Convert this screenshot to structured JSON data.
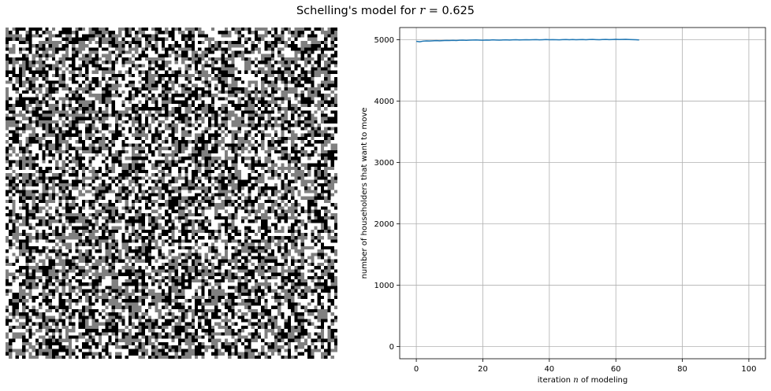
{
  "figure": {
    "title_prefix": "Schelling's model for ",
    "title_var": "r",
    "title_suffix": " = 0.625"
  },
  "grid_panel": {
    "rows": 100,
    "cols": 100,
    "colors": {
      "empty": "#ffffff",
      "group_a": "#808080",
      "group_b": "#000000"
    }
  },
  "chart_data": {
    "type": "line",
    "xlabel_prefix": "iteration ",
    "xlabel_var": "n",
    "xlabel_suffix": " of modeling",
    "ylabel": "number of householders that want to move",
    "xlim": [
      -5,
      105
    ],
    "ylim": [
      -200,
      5200
    ],
    "xticks": [
      0,
      20,
      40,
      60,
      80,
      100
    ],
    "yticks": [
      0,
      1000,
      2000,
      3000,
      4000,
      5000
    ],
    "grid": true,
    "line_color": "#1f77b4",
    "series": [
      {
        "x": [
          0,
          1,
          2,
          3,
          4,
          5,
          6,
          7,
          8,
          9,
          10,
          11,
          12,
          13,
          14,
          15,
          16,
          17,
          18,
          19,
          20,
          21,
          22,
          23,
          24,
          25,
          26,
          27,
          28,
          29,
          30,
          31,
          32,
          33,
          34,
          35,
          36,
          37,
          38,
          39,
          40,
          41,
          42,
          43,
          44,
          45,
          46,
          47,
          48,
          49,
          50,
          51,
          52,
          53,
          54,
          55,
          56,
          57,
          58,
          59,
          60,
          61,
          62,
          63,
          64,
          65,
          66,
          67
        ],
        "values": [
          4975,
          4968,
          4978,
          4982,
          4980,
          4984,
          4987,
          4983,
          4986,
          4990,
          4988,
          4992,
          4989,
          4993,
          4995,
          4991,
          4994,
          4996,
          4998,
          4995,
          4993,
          4997,
          4995,
          4999,
          4996,
          4994,
          4998,
          5000,
          4997,
          4999,
          5001,
          4998,
          5000,
          5002,
          4999,
          5001,
          5003,
          5000,
          5002,
          5004,
          5001,
          5003,
          5002,
          5000,
          5003,
          5005,
          5002,
          5004,
          5001,
          5003,
          5005,
          5002,
          5004,
          5006,
          5003,
          5001,
          5004,
          5006,
          5003,
          5005,
          5007,
          5004,
          5006,
          5008,
          5005,
          5003,
          5001,
          4998
        ]
      }
    ]
  }
}
